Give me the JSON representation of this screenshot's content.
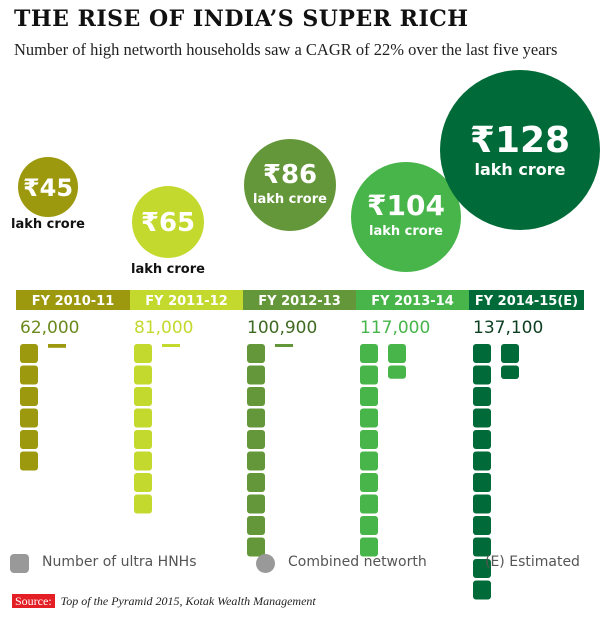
{
  "title": "THE RISE OF INDIA’S SUPER RICH",
  "subtitle": "Number of high networth households saw a CAGR of 22% over the last five years",
  "chart_data": {
    "type": "pictogram",
    "categories": [
      "FY 2010-11",
      "FY 2011-12",
      "FY 2012-13",
      "FY 2013-14",
      "FY 2014-15(E)"
    ],
    "households": [
      62000,
      81000,
      100900,
      117000,
      137100
    ],
    "household_labels": [
      "62,000",
      "81,000",
      "100,900",
      "117,000",
      "137,100"
    ],
    "networth": [
      45,
      65,
      86,
      104,
      128
    ],
    "networth_labels": [
      "₹45",
      "₹65",
      "₹86",
      "₹104",
      "₹128"
    ],
    "networth_unit": "lakh crore",
    "colors": [
      "#9c990e",
      "#c4d92e",
      "#64973a",
      "#47b54a",
      "#006b38"
    ]
  },
  "legend": {
    "households": "Number of ultra HNHs",
    "networth": "Combined networth",
    "estimated": "(E) Estimated"
  },
  "source": {
    "label": "Source:",
    "text": "Top of the Pyramid 2015, Kotak Wealth Management"
  }
}
